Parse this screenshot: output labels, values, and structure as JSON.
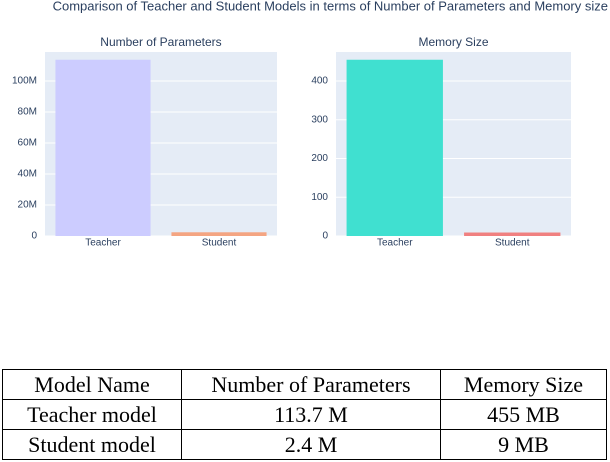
{
  "title": "Comparison of Teacher and Student Models in terms of Number of Parameters and Memory size",
  "chart_data": [
    {
      "type": "bar",
      "title": "Number of Parameters",
      "categories": [
        "Teacher",
        "Student"
      ],
      "values": [
        113700000,
        2400000
      ],
      "colors": [
        "#ccccff",
        "#f4a582"
      ],
      "ylim": [
        0,
        118700000
      ],
      "yticks": [
        0,
        {
          "value": 20000000,
          "label": "20M"
        },
        {
          "value": 40000000,
          "label": "40M"
        },
        {
          "value": 60000000,
          "label": "60M"
        },
        {
          "value": 80000000,
          "label": "80M"
        },
        {
          "value": 100000000,
          "label": "100M"
        }
      ],
      "grid": true
    },
    {
      "type": "bar",
      "title": "Memory Size",
      "categories": [
        "Teacher",
        "Student"
      ],
      "values": [
        455,
        9
      ],
      "colors": [
        "#40e0d0",
        "#f08080"
      ],
      "ylim": [
        0,
        475
      ],
      "yticks": [
        0,
        100,
        200,
        300,
        400
      ],
      "grid": true
    }
  ],
  "table": {
    "header": [
      "Model Name",
      "Number of Parameters",
      "Memory Size"
    ],
    "rows": [
      [
        "Teacher model",
        "113.7 M",
        "455 MB"
      ],
      [
        "Student model",
        "2.4 M",
        "9 MB"
      ]
    ]
  }
}
